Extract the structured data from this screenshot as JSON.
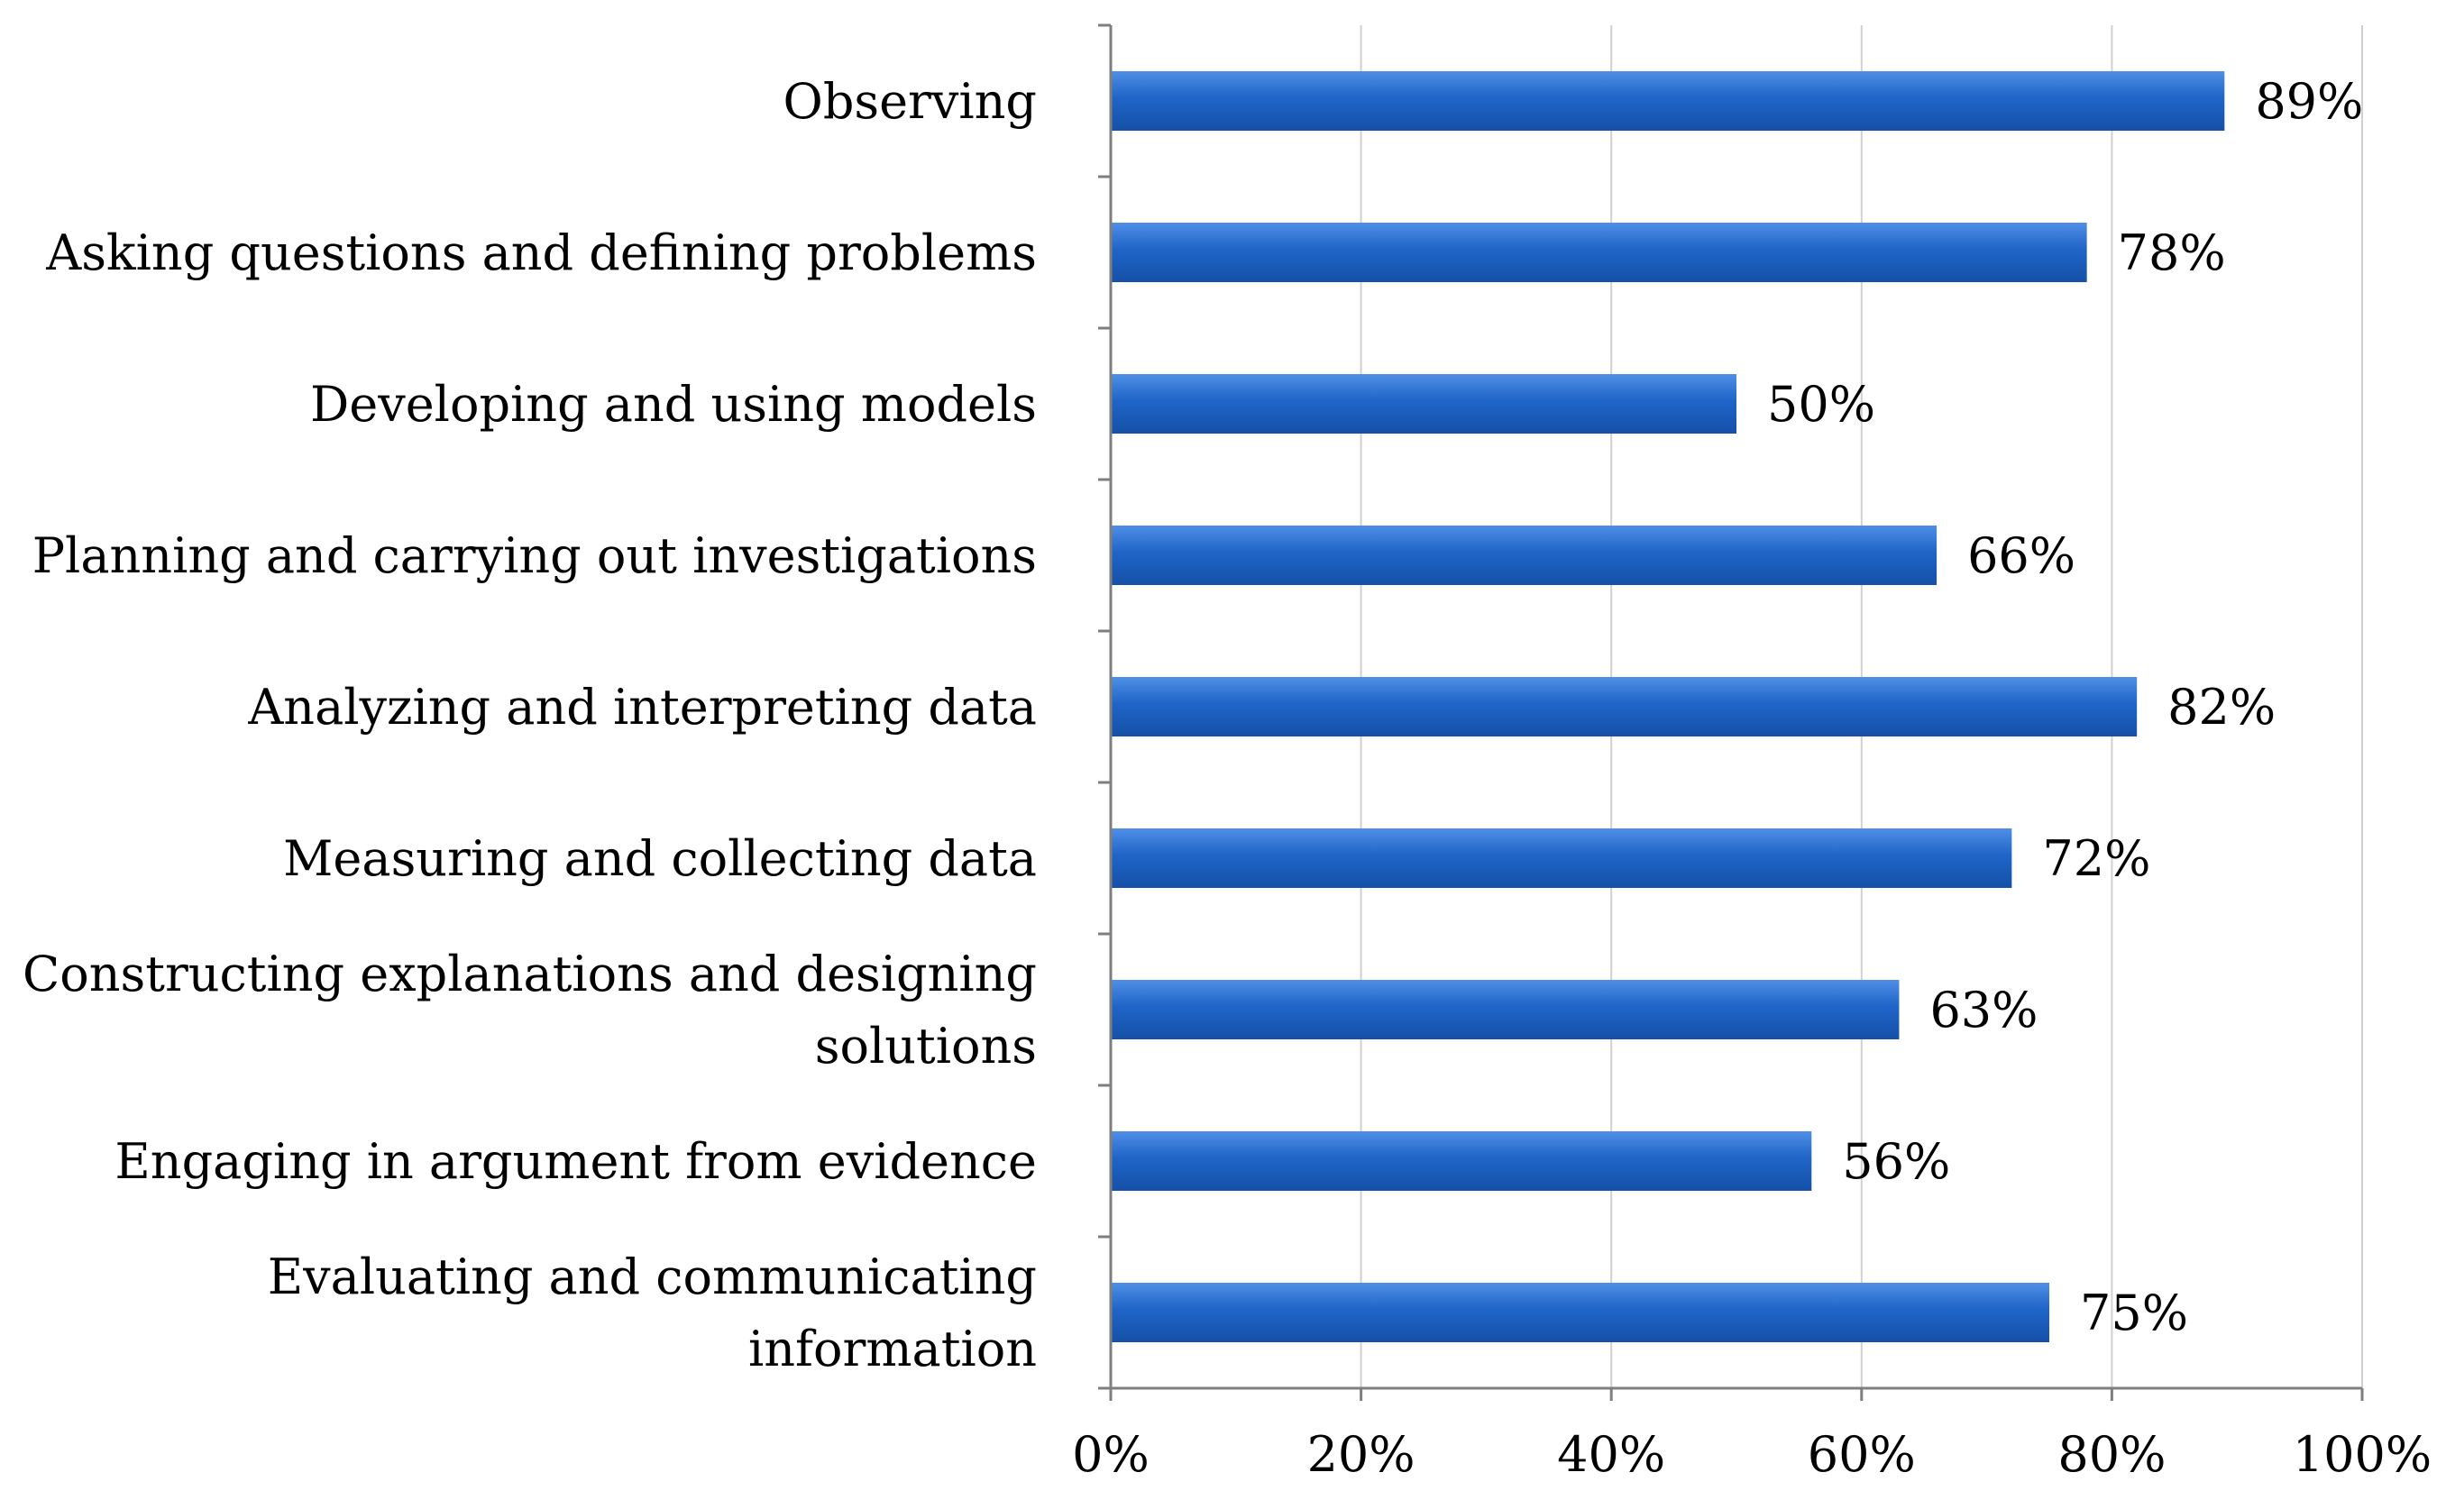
{
  "chart_data": {
    "type": "bar",
    "orientation": "horizontal",
    "title": "",
    "xlabel": "",
    "ylabel": "",
    "xlim": [
      0,
      100
    ],
    "grid": true,
    "bar_color": "#1f65c8",
    "categories": [
      [
        "Observing"
      ],
      [
        "Asking questions and defining problems"
      ],
      [
        "Developing and using models"
      ],
      [
        "Planning and carrying out investigations"
      ],
      [
        "Analyzing and interpreting data"
      ],
      [
        "Measuring and collecting data"
      ],
      [
        "Constructing explanations and designing",
        "solutions"
      ],
      [
        "Engaging in argument from evidence"
      ],
      [
        "Evaluating and communicating",
        "information"
      ]
    ],
    "values": [
      89,
      78,
      50,
      66,
      82,
      72,
      63,
      56,
      75
    ],
    "value_labels": [
      "89%",
      "78%",
      "50%",
      "66%",
      "82%",
      "72%",
      "63%",
      "56%",
      "75%"
    ],
    "ticks": [
      0,
      20,
      40,
      60,
      80,
      100
    ],
    "tick_labels": [
      "0%",
      "20%",
      "40%",
      "60%",
      "80%",
      "100%"
    ]
  }
}
